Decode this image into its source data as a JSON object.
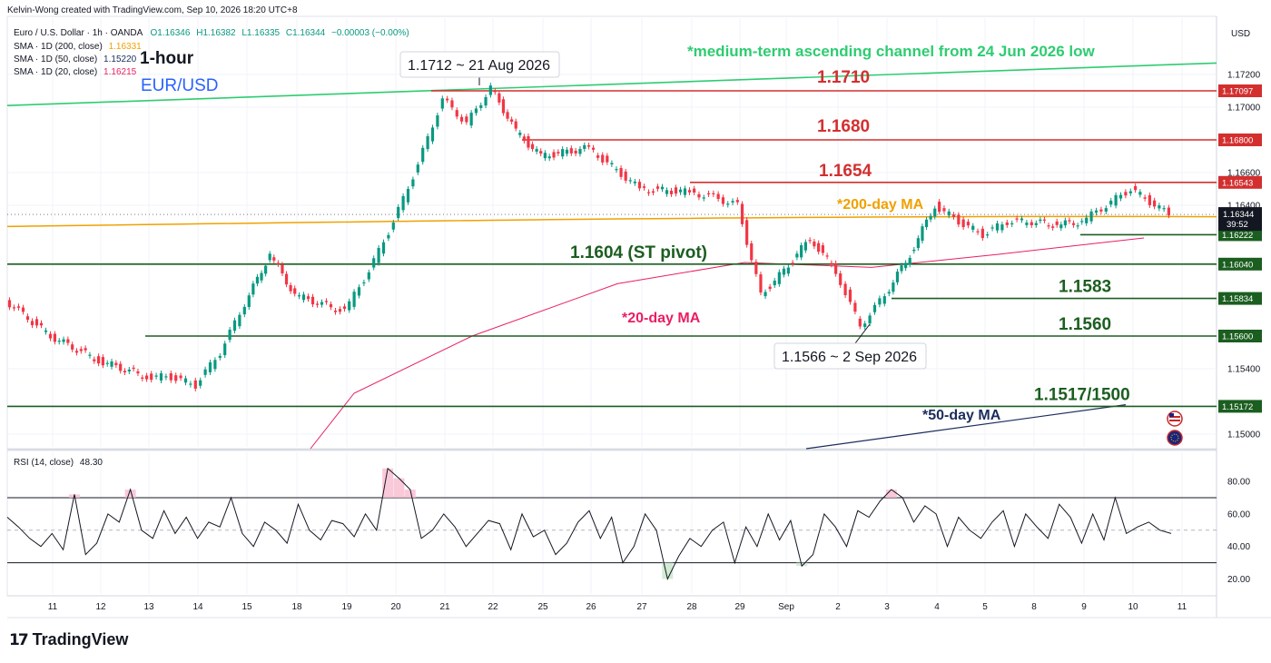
{
  "header": {
    "credit": "Kelvin-Wong created with TradingView.com, Sep 10, 2026 18:20 UTC+8",
    "symbol_line": "Euro / U.S. Dollar · 1h · OANDA",
    "ohlc": {
      "o": "O1.16346",
      "h": "H1.16382",
      "l": "L1.16335",
      "c": "C1.16344",
      "chg": "−0.00003 (−0.00%)"
    },
    "sma_200": {
      "label": "SMA · 1D (200, close)",
      "value": "1.16331",
      "color": "#f0a100"
    },
    "sma_50": {
      "label": "SMA · 1D (50, close)",
      "value": "1.15220",
      "color": "#1b2d5b"
    },
    "sma_20": {
      "label": "SMA · 1D (20, close)",
      "value": "1.16215",
      "color": "#e91e63"
    },
    "timeframe": "1-hour",
    "pair": "EUR/USD"
  },
  "currency": "USD",
  "chart_data": {
    "type": "line",
    "title": "EUR/USD 1-hour",
    "ylim": [
      1.1485,
      1.1742
    ],
    "price_ticks": [
      "1.17200",
      "1.17000",
      "1.16600",
      "1.16400",
      "1.15400",
      "1.15000"
    ],
    "price_tick_values": [
      1.172,
      1.17,
      1.166,
      1.164,
      1.154,
      1.15
    ],
    "x_tick_labels": [
      "11",
      "12",
      "13",
      "14",
      "15",
      "18",
      "19",
      "20",
      "21",
      "22",
      "25",
      "26",
      "27",
      "28",
      "29",
      "Sep",
      "2",
      "3",
      "4",
      "5",
      "8",
      "9",
      "10",
      "11"
    ],
    "series": [
      {
        "x": [
          "11",
          "12",
          "13",
          "13.5",
          "14",
          "14.5",
          "15",
          "15.5",
          "18",
          "19",
          "19.5",
          "20",
          "20.5",
          "21",
          "21.5",
          "22",
          "22.5",
          "25",
          "26",
          "27",
          "28",
          "28.5",
          "29",
          "29.5",
          "Sep",
          "Sep.5",
          "2",
          "2.5",
          "3",
          "3.5",
          "4",
          "4.5",
          "5",
          "5.5",
          "8",
          "8.5",
          "9",
          "9.5",
          "10",
          "10.5"
        ],
        "values": [
          1.156,
          1.1545,
          1.1535,
          1.1535,
          1.153,
          1.155,
          1.158,
          1.161,
          1.1585,
          1.1575,
          1.16,
          1.163,
          1.1665,
          1.1705,
          1.169,
          1.1712,
          1.1685,
          1.167,
          1.1675,
          1.165,
          1.1648,
          1.1645,
          1.164,
          1.1585,
          1.16,
          1.162,
          1.16,
          1.1566,
          1.1585,
          1.161,
          1.164,
          1.163,
          1.1622,
          1.163,
          1.163,
          1.1628,
          1.163,
          1.164,
          1.165,
          1.16344
        ]
      }
    ],
    "levels": [
      {
        "price": 1.171,
        "label": "1.1710",
        "axis_badge": "1.17097",
        "color": "#d32f2f"
      },
      {
        "price": 1.168,
        "label": "1.1680",
        "axis_badge": "1.16800",
        "color": "#d32f2f"
      },
      {
        "price": 1.1654,
        "label": "1.1654",
        "axis_badge": "1.16543",
        "color": "#d32f2f"
      },
      {
        "price": 1.1622,
        "label": "",
        "axis_badge": "1.16222",
        "color": "#1b5e20"
      },
      {
        "price": 1.1604,
        "label": "1.1604 (ST pivot)",
        "axis_badge": "1.16040",
        "color": "#1b5e20"
      },
      {
        "price": 1.1583,
        "label": "1.1583",
        "axis_badge": "1.15834",
        "color": "#1b5e20"
      },
      {
        "price": 1.156,
        "label": "1.1560",
        "axis_badge": "1.15600",
        "color": "#1b5e20"
      },
      {
        "price": 1.1517,
        "label": "1.1517/1500",
        "axis_badge": "1.15172",
        "color": "#1b5e20"
      }
    ],
    "last_price": {
      "value": "1.16344",
      "countdown": "39:52"
    },
    "annotations": {
      "channel": "*medium-term ascending channel from 24 Jun 2026 low",
      "ma200": "*200-day MA",
      "ma20": "*20-day MA",
      "ma50": "*50-day MA",
      "high": "1.1712 ~ 21 Aug 2026",
      "low": "1.1566 ~ 2 Sep 2026"
    },
    "rsi": {
      "label": "RSI (14, close)",
      "value": "48.30",
      "ylim": [
        10,
        95
      ],
      "ticks": [
        "80.00",
        "60.00",
        "40.00",
        "20.00"
      ],
      "tick_values": [
        80,
        60,
        40,
        20
      ],
      "overbought": 70,
      "oversold": 30,
      "midline": 50,
      "values": [
        58,
        52,
        45,
        40,
        48,
        38,
        72,
        35,
        42,
        60,
        55,
        75,
        50,
        45,
        62,
        48,
        58,
        45,
        55,
        52,
        70,
        48,
        40,
        55,
        50,
        42,
        66,
        50,
        44,
        56,
        54,
        46,
        60,
        50,
        88,
        82,
        75,
        45,
        50,
        60,
        52,
        40,
        48,
        56,
        54,
        38,
        60,
        46,
        50,
        35,
        42,
        55,
        62,
        45,
        58,
        30,
        40,
        60,
        50,
        20,
        34,
        45,
        40,
        50,
        55,
        30,
        52,
        40,
        60,
        44,
        56,
        28,
        35,
        60,
        52,
        40,
        62,
        58,
        68,
        75,
        70,
        55,
        65,
        60,
        40,
        58,
        50,
        45,
        55,
        62,
        40,
        60,
        52,
        45,
        66,
        58,
        42,
        60,
        44,
        70,
        48,
        52,
        55,
        50,
        48
      ]
    },
    "grid": true
  },
  "branding": {
    "mark": "17",
    "name": "TradingView"
  }
}
